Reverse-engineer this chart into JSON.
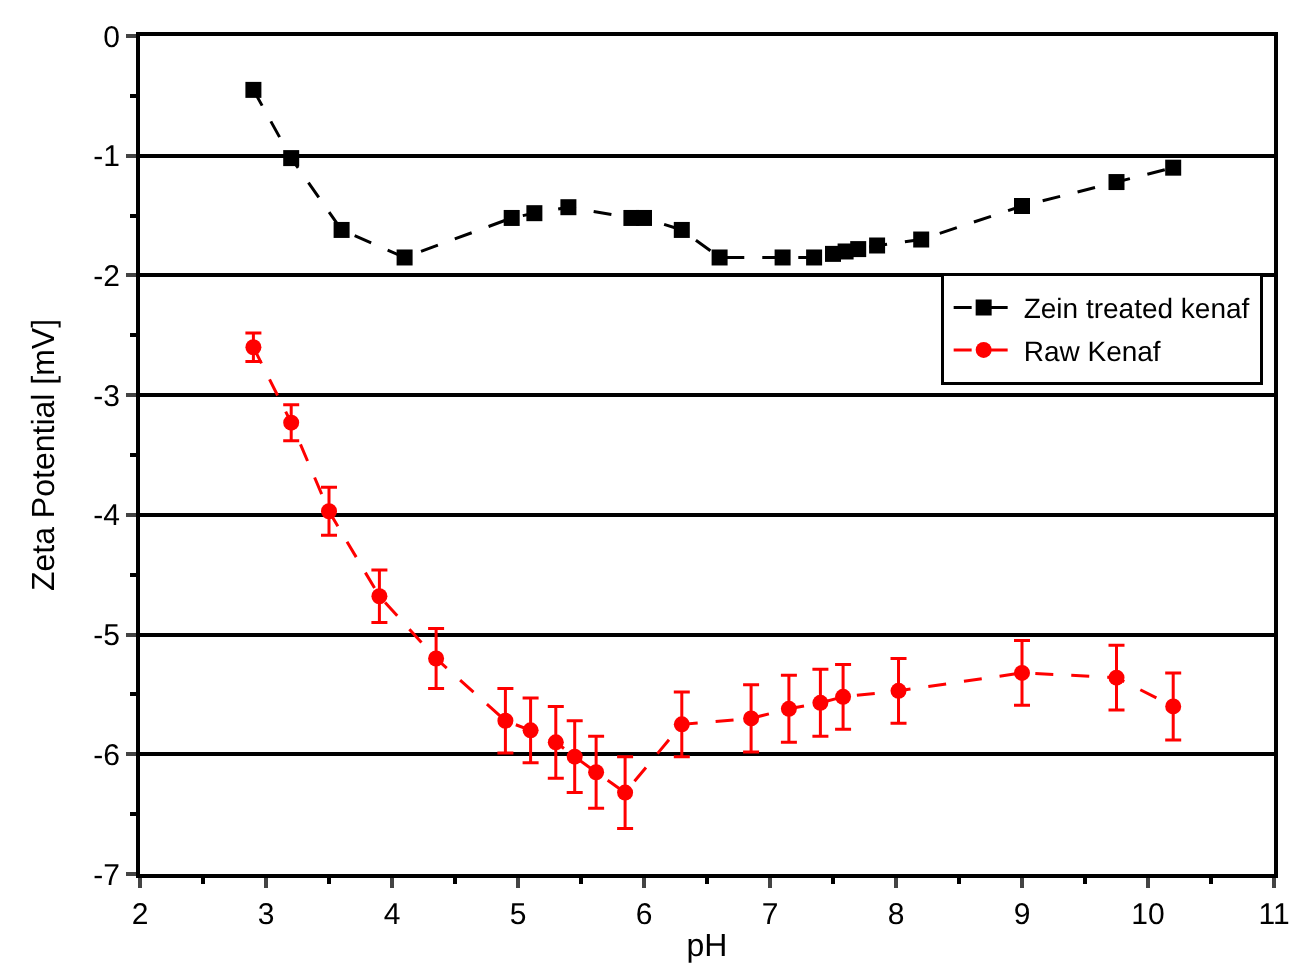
{
  "chart_data": {
    "type": "line",
    "xlabel": "pH",
    "ylabel": "Zeta Potential [mV]",
    "xlim": [
      2,
      11
    ],
    "xticks": [
      2,
      3,
      4,
      5,
      6,
      7,
      8,
      9,
      10,
      11
    ],
    "ylim": [
      -7,
      0
    ],
    "yticks": [
      -7,
      -6,
      -5,
      -4,
      -3,
      -2,
      -1,
      0
    ],
    "grid": "y",
    "legend": "right",
    "line_style": "dashed",
    "series": [
      {
        "name": "Zein treated kenaf",
        "color": "#000000",
        "marker": "square",
        "x": [
          2.9,
          3.2,
          3.6,
          4.1,
          4.95,
          5.13,
          5.4,
          5.9,
          6.0,
          6.3,
          6.6,
          7.1,
          7.35,
          7.5,
          7.6,
          7.7,
          7.85,
          8.2,
          9.0,
          9.75,
          10.2
        ],
        "values": [
          -0.45,
          -1.02,
          -1.62,
          -1.85,
          -1.52,
          -1.48,
          -1.43,
          -1.52,
          -1.52,
          -1.62,
          -1.85,
          -1.85,
          -1.85,
          -1.82,
          -1.8,
          -1.78,
          -1.75,
          -1.7,
          -1.42,
          -1.22,
          -1.1
        ]
      },
      {
        "name": "Raw Kenaf",
        "color": "#ff0000",
        "marker": "circle",
        "x": [
          2.9,
          3.2,
          3.5,
          3.9,
          4.35,
          4.9,
          5.1,
          5.3,
          5.45,
          5.62,
          5.85,
          6.3,
          6.85,
          7.15,
          7.4,
          7.58,
          8.02,
          9.0,
          9.75,
          10.2
        ],
        "values": [
          -2.6,
          -3.23,
          -3.97,
          -4.68,
          -5.2,
          -5.72,
          -5.8,
          -5.9,
          -6.02,
          -6.15,
          -6.32,
          -5.75,
          -5.7,
          -5.62,
          -5.57,
          -5.52,
          -5.47,
          -5.32,
          -5.36,
          -5.6
        ],
        "errors": [
          0.12,
          0.15,
          0.2,
          0.22,
          0.25,
          0.27,
          0.27,
          0.3,
          0.3,
          0.3,
          0.3,
          0.27,
          0.28,
          0.28,
          0.28,
          0.27,
          0.27,
          0.27,
          0.27,
          0.28
        ]
      }
    ]
  }
}
